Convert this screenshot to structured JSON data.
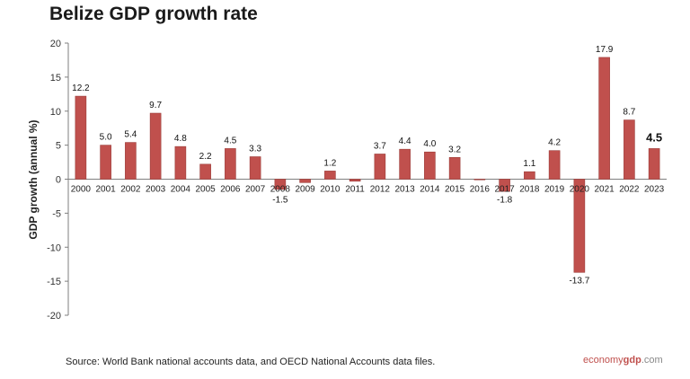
{
  "header": {
    "title": "Belize GDP growth rate"
  },
  "footer": {
    "source": "Source:  World Bank national accounts data, and OECD National Accounts data files.",
    "brand_part1": "economy",
    "brand_part2": "gdp",
    "brand_part3": ".com"
  },
  "colors": {
    "bar": "#c0504d",
    "bar_edge": "#9b3b38",
    "grid": "#d9d9d9",
    "axis": "#7f7f7f"
  },
  "chart_data": {
    "type": "bar",
    "title": "Belize GDP growth rate",
    "xlabel": "",
    "ylabel": "GDP growth (annual %)",
    "ylim": [
      -20,
      20
    ],
    "yticks": [
      20,
      15,
      10,
      5,
      0,
      -5,
      -10,
      -15,
      -20
    ],
    "grid": false,
    "categories": [
      "2000",
      "2001",
      "2002",
      "2003",
      "2004",
      "2005",
      "2006",
      "2007",
      "2008",
      "2009",
      "2010",
      "2011",
      "2012",
      "2013",
      "2014",
      "2015",
      "2016",
      "2017",
      "2018",
      "2019",
      "2020",
      "2021",
      "2022",
      "2023"
    ],
    "values": [
      12.2,
      5.0,
      5.4,
      9.7,
      4.8,
      2.2,
      4.5,
      3.3,
      -1.5,
      -0.5,
      1.2,
      -0.3,
      3.7,
      4.4,
      4.0,
      3.2,
      -0.1,
      -1.8,
      1.1,
      4.2,
      -13.7,
      17.9,
      8.7,
      4.5
    ],
    "data_labels": [
      "12.2",
      "5.0",
      "5.4",
      "9.7",
      "4.8",
      "2.2",
      "4.5",
      "3.3",
      "-1.5",
      "",
      "1.2",
      "",
      "3.7",
      "4.4",
      "4.0",
      "3.2",
      "",
      "-1.8",
      "1.1",
      "4.2",
      "-13.7",
      "17.9",
      "8.7",
      "4.5"
    ]
  }
}
